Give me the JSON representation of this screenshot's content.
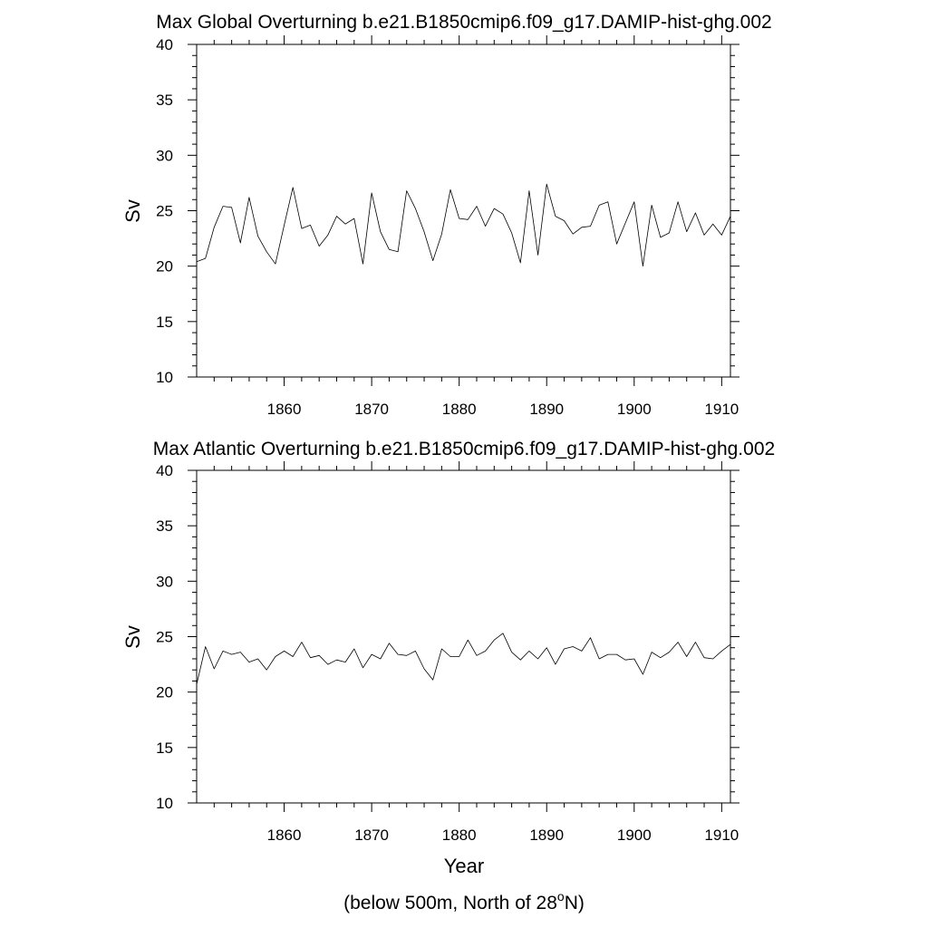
{
  "footnote": {
    "prefix": "(below 500m, North of 28",
    "sup": "o",
    "suffix": "N)"
  },
  "chart_data": [
    {
      "type": "line",
      "title": "Max Global Overturning b.e21.B1850cmip6.f09_g17.DAMIP-hist-ghg.002",
      "xlabel": "",
      "ylabel": "Sv",
      "xlim": [
        1850,
        1911
      ],
      "ylim": [
        10,
        40
      ],
      "xticks": [
        1860,
        1870,
        1880,
        1890,
        1900,
        1910
      ],
      "yticks": [
        10,
        15,
        20,
        25,
        30,
        35,
        40
      ],
      "grid": false,
      "line_color": "#000000",
      "x": [
        1850,
        1851,
        1852,
        1853,
        1854,
        1855,
        1856,
        1857,
        1858,
        1859,
        1860,
        1861,
        1862,
        1863,
        1864,
        1865,
        1866,
        1867,
        1868,
        1869,
        1870,
        1871,
        1872,
        1873,
        1874,
        1875,
        1876,
        1877,
        1878,
        1879,
        1880,
        1881,
        1882,
        1883,
        1884,
        1885,
        1886,
        1887,
        1888,
        1889,
        1890,
        1891,
        1892,
        1893,
        1894,
        1895,
        1896,
        1897,
        1898,
        1899,
        1900,
        1901,
        1902,
        1903,
        1904,
        1905,
        1906,
        1907,
        1908,
        1909,
        1910,
        1911
      ],
      "y": [
        20.4,
        20.7,
        23.5,
        25.4,
        25.3,
        22.1,
        26.2,
        22.7,
        21.3,
        20.2,
        23.7,
        27.1,
        23.4,
        23.7,
        21.8,
        22.8,
        24.5,
        23.8,
        24.3,
        20.2,
        26.6,
        23.1,
        21.5,
        21.3,
        26.8,
        25.2,
        23.1,
        20.5,
        22.9,
        26.9,
        24.3,
        24.2,
        25.4,
        23.6,
        25.2,
        24.7,
        23.0,
        20.3,
        26.8,
        21.0,
        27.4,
        24.5,
        24.1,
        22.9,
        23.5,
        23.6,
        25.5,
        25.8,
        22.0,
        23.9,
        25.8,
        20.0,
        25.5,
        22.6,
        23.0,
        25.8,
        23.1,
        24.8,
        22.8,
        23.8,
        22.8,
        24.5
      ]
    },
    {
      "type": "line",
      "title": "Max Atlantic Overturning b.e21.B1850cmip6.f09_g17.DAMIP-hist-ghg.002",
      "xlabel": "Year",
      "ylabel": "Sv",
      "xlim": [
        1850,
        1911
      ],
      "ylim": [
        10,
        40
      ],
      "xticks": [
        1860,
        1870,
        1880,
        1890,
        1900,
        1910
      ],
      "yticks": [
        10,
        15,
        20,
        25,
        30,
        35,
        40
      ],
      "grid": false,
      "line_color": "#000000",
      "x": [
        1850,
        1851,
        1852,
        1853,
        1854,
        1855,
        1856,
        1857,
        1858,
        1859,
        1860,
        1861,
        1862,
        1863,
        1864,
        1865,
        1866,
        1867,
        1868,
        1869,
        1870,
        1871,
        1872,
        1873,
        1874,
        1875,
        1876,
        1877,
        1878,
        1879,
        1880,
        1881,
        1882,
        1883,
        1884,
        1885,
        1886,
        1887,
        1888,
        1889,
        1890,
        1891,
        1892,
        1893,
        1894,
        1895,
        1896,
        1897,
        1898,
        1899,
        1900,
        1901,
        1902,
        1903,
        1904,
        1905,
        1906,
        1907,
        1908,
        1909,
        1910,
        1911
      ],
      "y": [
        20.7,
        24.1,
        22.1,
        23.7,
        23.4,
        23.6,
        22.7,
        23.0,
        22.0,
        23.2,
        23.7,
        23.2,
        24.5,
        23.1,
        23.3,
        22.5,
        22.9,
        22.7,
        23.9,
        22.2,
        23.4,
        23.0,
        24.4,
        23.4,
        23.3,
        23.7,
        22.1,
        21.1,
        23.9,
        23.2,
        23.2,
        24.7,
        23.3,
        23.7,
        24.7,
        25.3,
        23.6,
        22.9,
        23.7,
        23.0,
        24.0,
        22.5,
        23.9,
        24.1,
        23.7,
        24.9,
        23.0,
        23.4,
        23.4,
        22.9,
        23.0,
        21.6,
        23.6,
        23.1,
        23.6,
        24.5,
        23.2,
        24.5,
        23.1,
        23.0,
        23.7,
        24.3
      ]
    }
  ]
}
